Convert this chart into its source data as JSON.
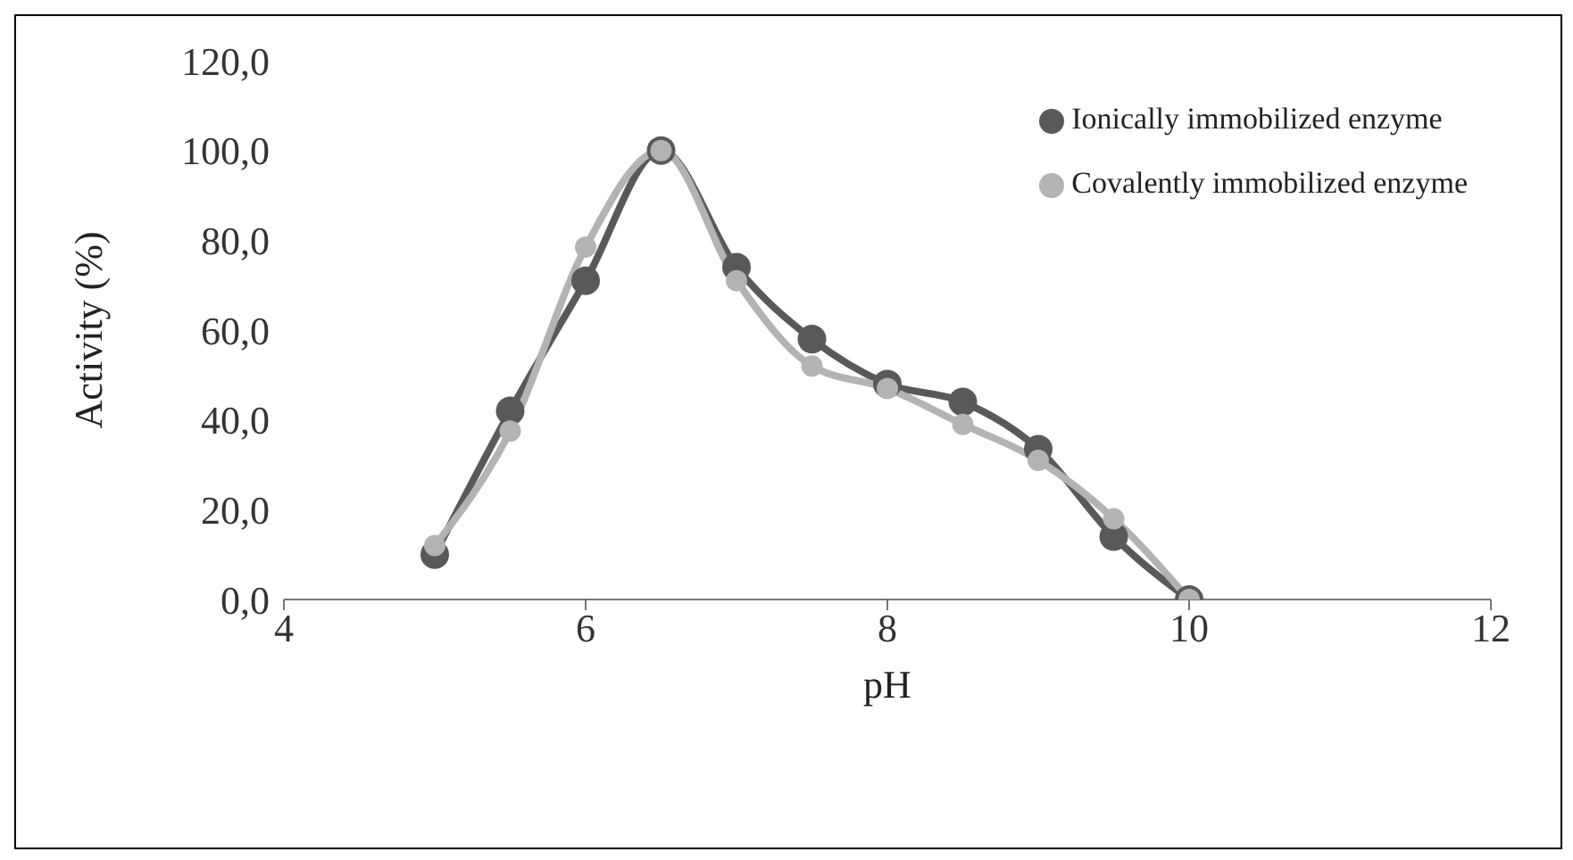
{
  "chart_data": {
    "type": "line",
    "xlabel": "pH",
    "ylabel": "Activity (%)",
    "xlim": [
      4,
      12
    ],
    "xticks": [
      4,
      6,
      8,
      10,
      12
    ],
    "ylim": [
      0,
      120
    ],
    "yticks": [
      {
        "value": 0,
        "label": "0,0"
      },
      {
        "value": 20,
        "label": "20,0"
      },
      {
        "value": 40,
        "label": "40,0"
      },
      {
        "value": 60,
        "label": "60,0"
      },
      {
        "value": 80,
        "label": "80,0"
      },
      {
        "value": 100,
        "label": "100,0"
      },
      {
        "value": 120,
        "label": "120,0"
      }
    ],
    "x": [
      5,
      5.5,
      6,
      6.5,
      7,
      7.5,
      8,
      8.5,
      9,
      9.5,
      10
    ],
    "series": [
      {
        "name": "Ionically immobilized enzyme",
        "color": "#595959",
        "values": [
          10,
          42,
          71,
          100,
          74,
          58,
          48,
          44,
          33.5,
          14,
          0
        ]
      },
      {
        "name": "Covalently immobilized enzyme",
        "color": "#b3b3b3",
        "values": [
          12,
          37.5,
          78.5,
          100,
          71,
          52,
          47,
          39,
          31,
          18,
          0
        ]
      }
    ],
    "grid": false,
    "legend": "top right",
    "marker": "circle",
    "line_style": "solid"
  }
}
